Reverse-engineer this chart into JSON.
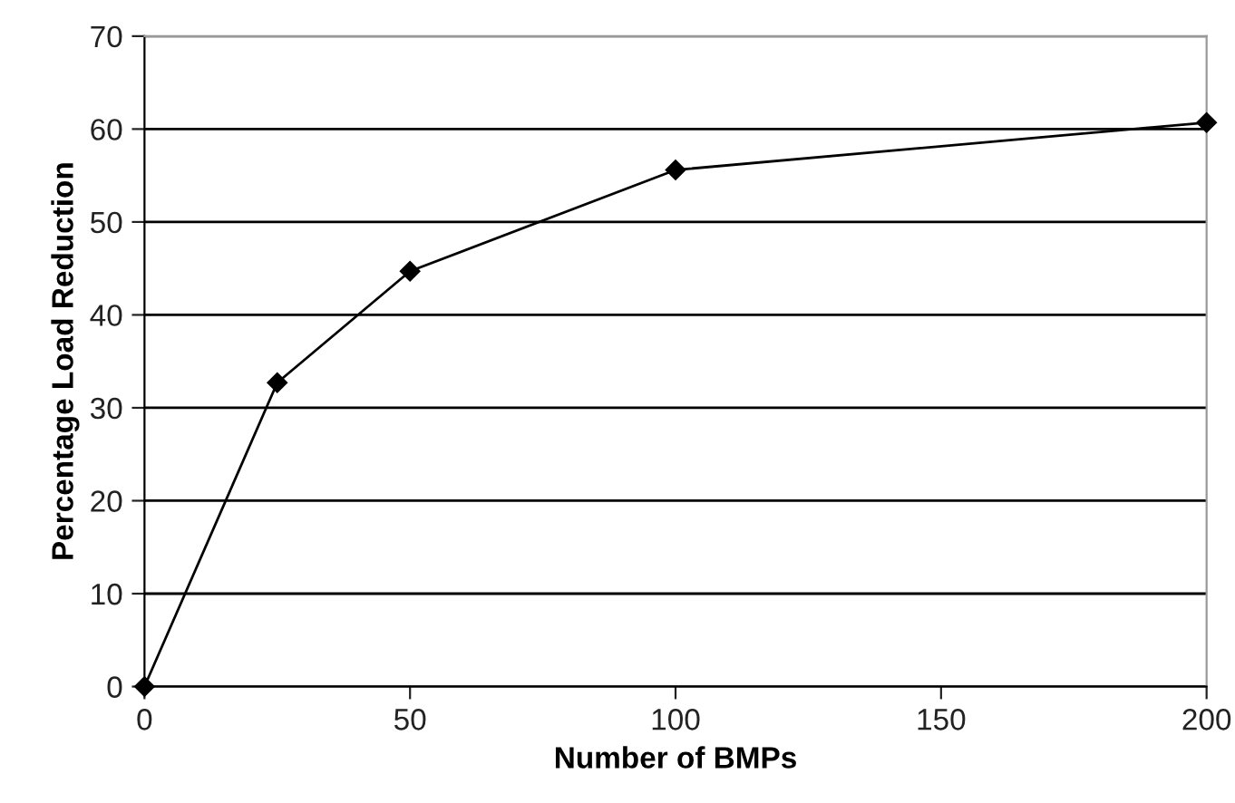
{
  "chart_data": {
    "type": "line",
    "xlabel": "Number of BMPs",
    "ylabel": "Percentage Load Reduction",
    "x": [
      0,
      25,
      50,
      100,
      200
    ],
    "series": [
      {
        "color": "#000000",
        "values": [
          0,
          32.7,
          44.7,
          55.6,
          60.7
        ]
      }
    ],
    "xlim": [
      0,
      200
    ],
    "xticks": [
      0,
      50,
      100,
      150,
      200
    ],
    "ylim": [
      0,
      70
    ],
    "yticks": [
      0,
      10,
      20,
      30,
      40,
      50,
      60,
      70
    ],
    "grid": "y",
    "marker": "diamond",
    "line_style": "solid"
  }
}
